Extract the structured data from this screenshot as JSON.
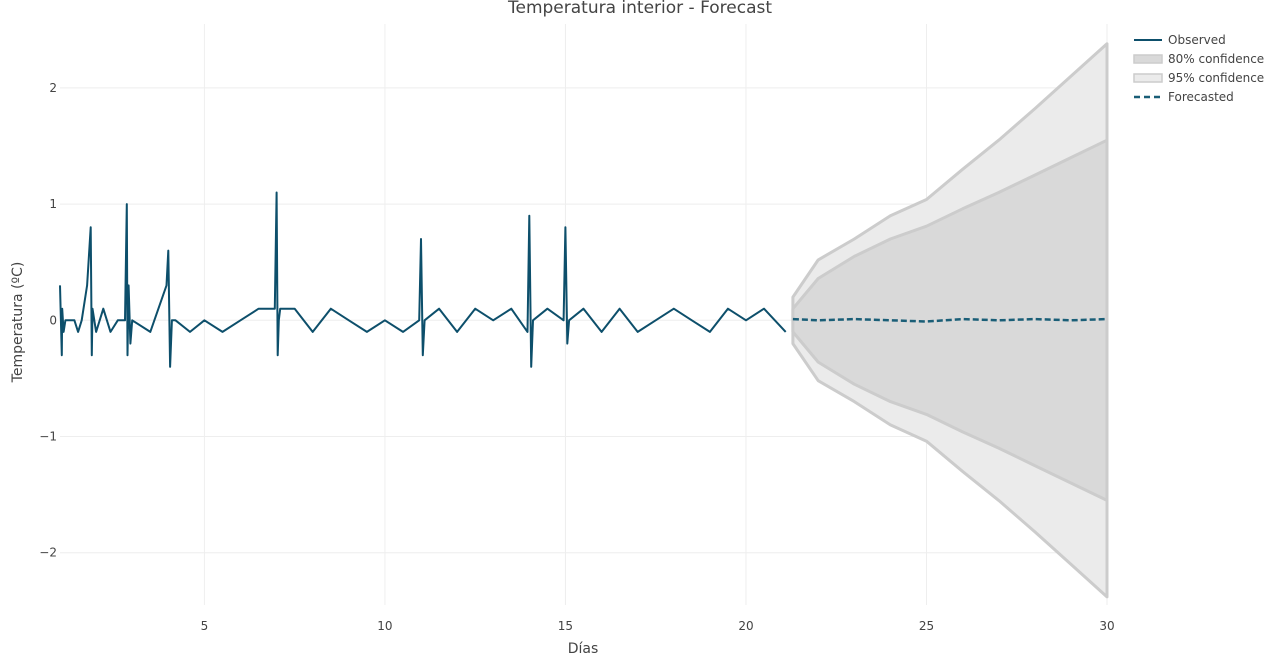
{
  "chart_data": {
    "type": "line",
    "title": "Temperatura interior - Forecast",
    "xlabel": "Días",
    "ylabel": "Temperatura  (ºC)",
    "xlim": [
      1,
      30
    ],
    "ylim": [
      -2.45,
      2.55
    ],
    "xticks": [
      5,
      10,
      15,
      20,
      25,
      30
    ],
    "xtick_labels": [
      "5",
      "10",
      "15",
      "20",
      "25",
      "30"
    ],
    "yticks": [
      2,
      1,
      0,
      -1,
      -2
    ],
    "ytick_labels": [
      "2",
      "1",
      "0",
      "−1",
      "−2"
    ],
    "grid": true,
    "legend_position": "top-right",
    "colors": {
      "observed": "#0d4f6b",
      "forecast": "#1a5e77",
      "ci80": "#d9d9d9",
      "ci95": "#ebebeb",
      "ci_edge": "#cccccc"
    },
    "series": [
      {
        "name": "Observed",
        "x": [
          1.0,
          1.05,
          1.06,
          1.1,
          1.15,
          1.2,
          1.4,
          1.5,
          1.6,
          1.75,
          1.85,
          1.88,
          1.9,
          1.95,
          2.0,
          2.2,
          2.4,
          2.6,
          2.8,
          2.85,
          2.87,
          2.9,
          2.95,
          3.0,
          3.5,
          3.95,
          4.0,
          4.05,
          4.1,
          4.2,
          4.6,
          5.0,
          5.5,
          6.0,
          6.5,
          6.95,
          7.0,
          7.03,
          7.06,
          7.1,
          7.5,
          8.0,
          8.5,
          9.0,
          9.5,
          10.0,
          10.5,
          10.95,
          11.0,
          11.05,
          11.1,
          11.5,
          12.0,
          12.5,
          13.0,
          13.5,
          13.95,
          14.0,
          14.05,
          14.1,
          14.5,
          14.95,
          15.0,
          15.05,
          15.1,
          15.5,
          16.0,
          16.5,
          17.0,
          17.5,
          18.0,
          18.5,
          19.0,
          19.5,
          20.0,
          20.5,
          21.1
        ],
        "values": [
          0.3,
          -0.3,
          0.1,
          -0.1,
          0.0,
          0.0,
          0.0,
          -0.1,
          0.0,
          0.3,
          0.8,
          -0.3,
          0.1,
          0.0,
          -0.1,
          0.1,
          -0.1,
          0.0,
          0.0,
          1.0,
          -0.3,
          0.3,
          -0.2,
          0.0,
          -0.1,
          0.3,
          0.6,
          -0.4,
          0.0,
          0.0,
          -0.1,
          0.0,
          -0.1,
          0.0,
          0.1,
          0.1,
          1.1,
          -0.3,
          0.0,
          0.1,
          0.1,
          -0.1,
          0.1,
          0.0,
          -0.1,
          0.0,
          -0.1,
          0.0,
          0.7,
          -0.3,
          0.0,
          0.1,
          -0.1,
          0.1,
          0.0,
          0.1,
          -0.1,
          0.9,
          -0.4,
          0.0,
          0.1,
          0.0,
          0.8,
          -0.2,
          0.0,
          0.1,
          -0.1,
          0.1,
          -0.1,
          0.0,
          0.1,
          0.0,
          -0.1,
          0.1,
          0.0,
          0.1,
          -0.1
        ]
      },
      {
        "name": "Forecasted",
        "x": [
          21.3,
          22.0,
          23.0,
          24.0,
          25.0,
          26.0,
          27.0,
          28.0,
          29.0,
          30.0
        ],
        "values": [
          0.01,
          0.0,
          0.01,
          0.0,
          -0.01,
          0.01,
          0.0,
          0.01,
          0.0,
          0.01
        ]
      },
      {
        "name": "80% confidence",
        "x": [
          21.3,
          22.0,
          23.0,
          24.0,
          25.0,
          26.0,
          27.0,
          28.0,
          29.0,
          30.0
        ],
        "upper": [
          0.1,
          0.36,
          0.55,
          0.7,
          0.81,
          0.96,
          1.1,
          1.25,
          1.4,
          1.55
        ],
        "lower": [
          -0.1,
          -0.36,
          -0.55,
          -0.7,
          -0.81,
          -0.96,
          -1.1,
          -1.25,
          -1.4,
          -1.55
        ]
      },
      {
        "name": "95% confidence",
        "x": [
          21.3,
          22.0,
          23.0,
          24.0,
          25.0,
          26.0,
          27.0,
          28.0,
          29.0,
          30.0
        ],
        "upper": [
          0.2,
          0.52,
          0.7,
          0.9,
          1.04,
          1.3,
          1.55,
          1.82,
          2.1,
          2.38
        ],
        "lower": [
          -0.2,
          -0.52,
          -0.7,
          -0.9,
          -1.04,
          -1.3,
          -1.55,
          -1.82,
          -2.1,
          -2.38
        ]
      }
    ],
    "legend": [
      {
        "label": "Observed",
        "style": "line"
      },
      {
        "label": "80% confidence",
        "style": "band80"
      },
      {
        "label": "95% confidence",
        "style": "band95"
      },
      {
        "label": "Forecasted",
        "style": "dash"
      }
    ]
  }
}
